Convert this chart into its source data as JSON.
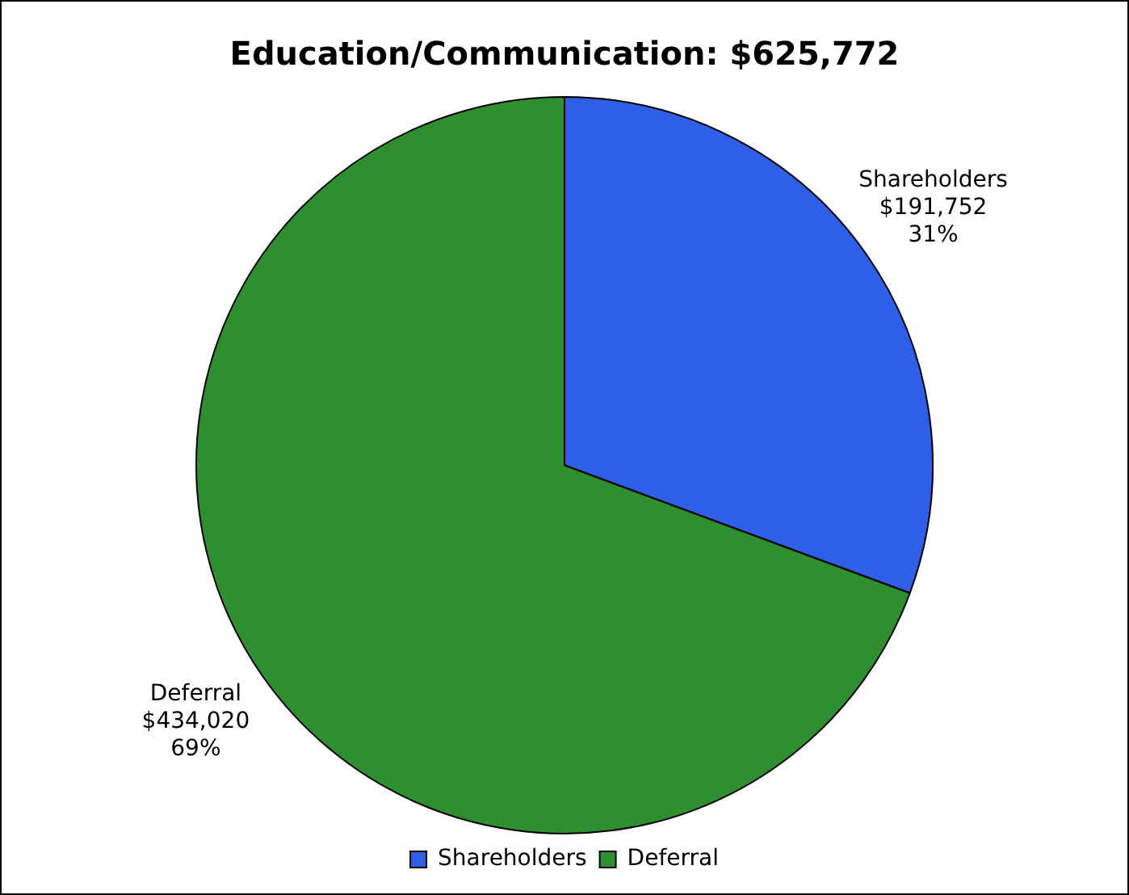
{
  "chart_data": {
    "type": "pie",
    "title": "Education/Communication: $625,772",
    "categories": [
      "Shareholders",
      "Deferral"
    ],
    "values": [
      191752,
      434020
    ],
    "colors": [
      "#2f5fe6",
      "#2e8f2e"
    ],
    "value_labels": [
      "$191,752\n31%",
      "$434,020\n69%"
    ],
    "legend": "bottom"
  }
}
